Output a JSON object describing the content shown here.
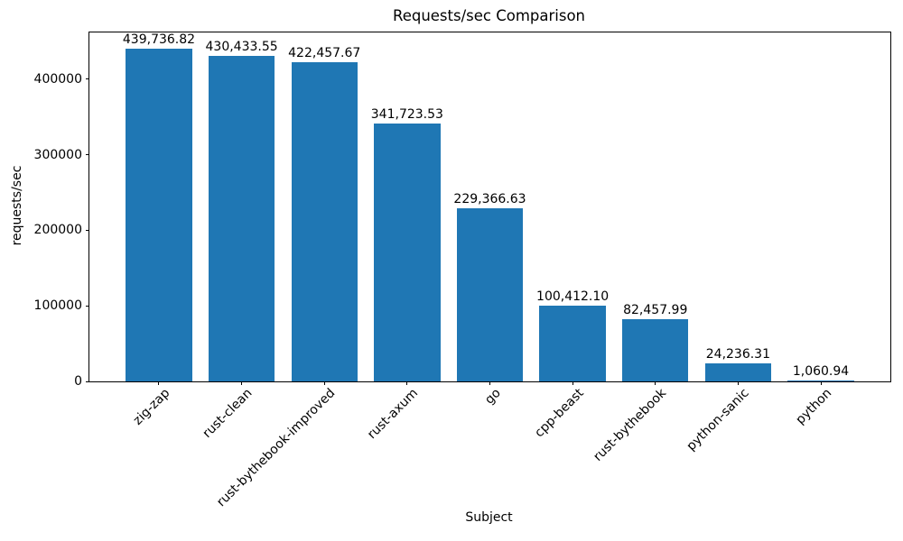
{
  "chart_data": {
    "type": "bar",
    "title": "Requests/sec Comparison",
    "xlabel": "Subject",
    "ylabel": "requests/sec",
    "categories": [
      "zig-zap",
      "rust-clean",
      "rust-bythebook-improved",
      "rust-axum",
      "go",
      "cpp-beast",
      "rust-bythebook",
      "python-sanic",
      "python"
    ],
    "values": [
      439736.82,
      430433.55,
      422457.67,
      341723.53,
      229366.63,
      100412.1,
      82457.99,
      24236.31,
      1060.94
    ],
    "bar_labels": [
      "439,736.82",
      "430,433.55",
      "422,457.67",
      "341,723.53",
      "229,366.63",
      "100,412.10",
      "82,457.99",
      "24,236.31",
      "1,060.94"
    ],
    "yticks": [
      0,
      100000,
      200000,
      300000,
      400000
    ],
    "ytick_labels": [
      "0",
      "100000",
      "200000",
      "300000",
      "400000"
    ],
    "ylim": [
      0,
      461723
    ],
    "bar_color": "#1f77b4",
    "grid": false,
    "legend": null
  }
}
